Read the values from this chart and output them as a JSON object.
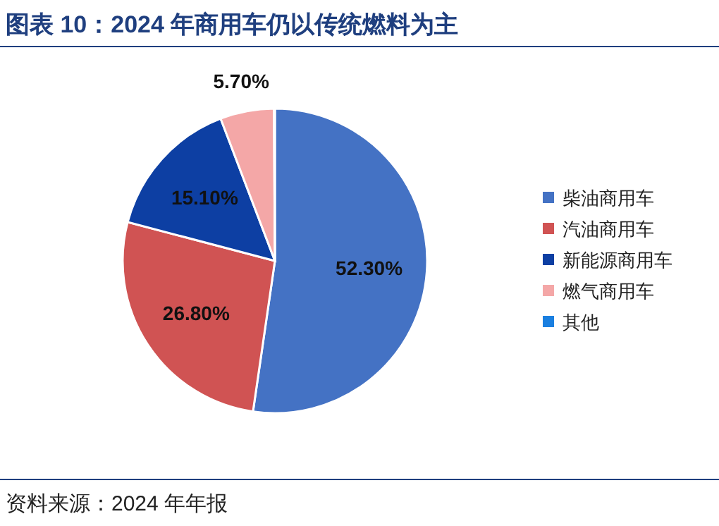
{
  "chart_data": {
    "type": "pie",
    "title": "图表 10：2024 年商用车仍以传统燃料为主",
    "categories": [
      "柴油商用车",
      "汽油商用车",
      "新能源商用车",
      "燃气商用车",
      "其他"
    ],
    "values": [
      52.3,
      26.8,
      15.1,
      5.7,
      0.1
    ],
    "colors": [
      "#4472c4",
      "#d05353",
      "#0d3fa3",
      "#f4a7a7",
      "#1a7fe0"
    ],
    "value_labels": [
      "52.30%",
      "26.80%",
      "15.10%",
      "5.70%",
      null
    ],
    "legend": "right",
    "annotations": [
      "资料来源：2024 年年报"
    ]
  }
}
